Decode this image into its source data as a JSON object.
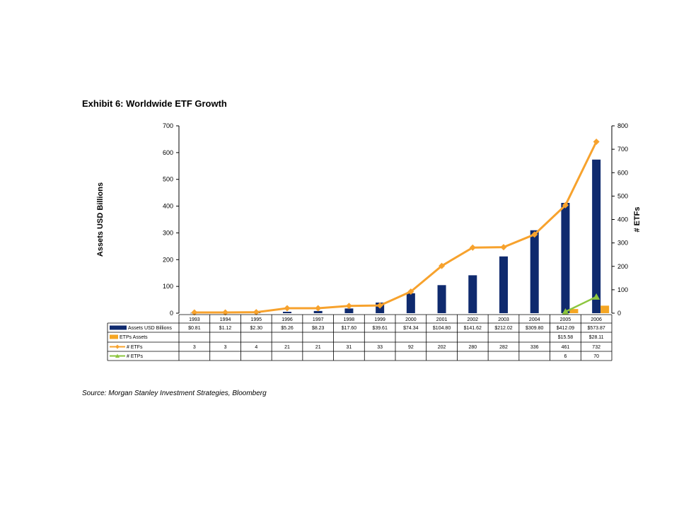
{
  "page": {
    "title": "Exhibit 6: Worldwide ETF Growth",
    "source": "Source: Morgan Stanley Investment Strategies, Bloomberg"
  },
  "colors": {
    "assets_bar": "#0f2a6e",
    "etps_bar": "#f5a623",
    "etfs_line": "#f7a22d",
    "etps_line": "#8dc63f"
  },
  "chart_data": {
    "type": "bar",
    "title": "Exhibit 6: Worldwide ETF Growth",
    "categories": [
      "1993",
      "1994",
      "1995",
      "1996",
      "1997",
      "1998",
      "1999",
      "2000",
      "2001",
      "2002",
      "2003",
      "2004",
      "2005",
      "2006"
    ],
    "ylabel": "Assets USD Billions",
    "y2label": "# ETFs",
    "ylim": [
      0,
      700
    ],
    "y2lim": [
      0,
      800
    ],
    "yticks": [
      0,
      100,
      200,
      300,
      400,
      500,
      600,
      700
    ],
    "y2ticks": [
      0,
      100,
      200,
      300,
      400,
      500,
      600,
      700,
      800
    ],
    "grid": false,
    "legend": "data table below chart",
    "series": [
      {
        "name": "Assets USD Billions",
        "type": "bar",
        "axis": "left",
        "values": [
          0.81,
          1.12,
          2.3,
          5.26,
          8.23,
          17.6,
          39.61,
          74.34,
          104.8,
          141.62,
          212.02,
          309.8,
          412.09,
          573.87
        ],
        "labels": [
          "$0.81",
          "$1.12",
          "$2.30",
          "$5.26",
          "$8.23",
          "$17.60",
          "$39.61",
          "$74.34",
          "$104.80",
          "$141.62",
          "$212.02",
          "$309.80",
          "$412.09",
          "$573.87"
        ]
      },
      {
        "name": "ETPs Assets",
        "type": "bar",
        "axis": "left",
        "values": [
          null,
          null,
          null,
          null,
          null,
          null,
          null,
          null,
          null,
          null,
          null,
          null,
          15.58,
          28.11
        ],
        "labels": [
          "",
          "",
          "",
          "",
          "",
          "",
          "",
          "",
          "",
          "",
          "",
          "",
          "$15.58",
          "$28.11"
        ]
      },
      {
        "name": "# ETFs",
        "type": "line",
        "axis": "right",
        "values": [
          3,
          3,
          4,
          21,
          21,
          31,
          33,
          92,
          202,
          280,
          282,
          336,
          461,
          732
        ],
        "labels": [
          "3",
          "3",
          "4",
          "21",
          "21",
          "31",
          "33",
          "92",
          "202",
          "280",
          "282",
          "336",
          "461",
          "732"
        ]
      },
      {
        "name": "# ETPs",
        "type": "line",
        "axis": "right",
        "values": [
          null,
          null,
          null,
          null,
          null,
          null,
          null,
          null,
          null,
          null,
          null,
          null,
          6,
          70
        ],
        "labels": [
          "",
          "",
          "",
          "",
          "",
          "",
          "",
          "",
          "",
          "",
          "",
          "",
          "6",
          "70"
        ]
      }
    ]
  }
}
